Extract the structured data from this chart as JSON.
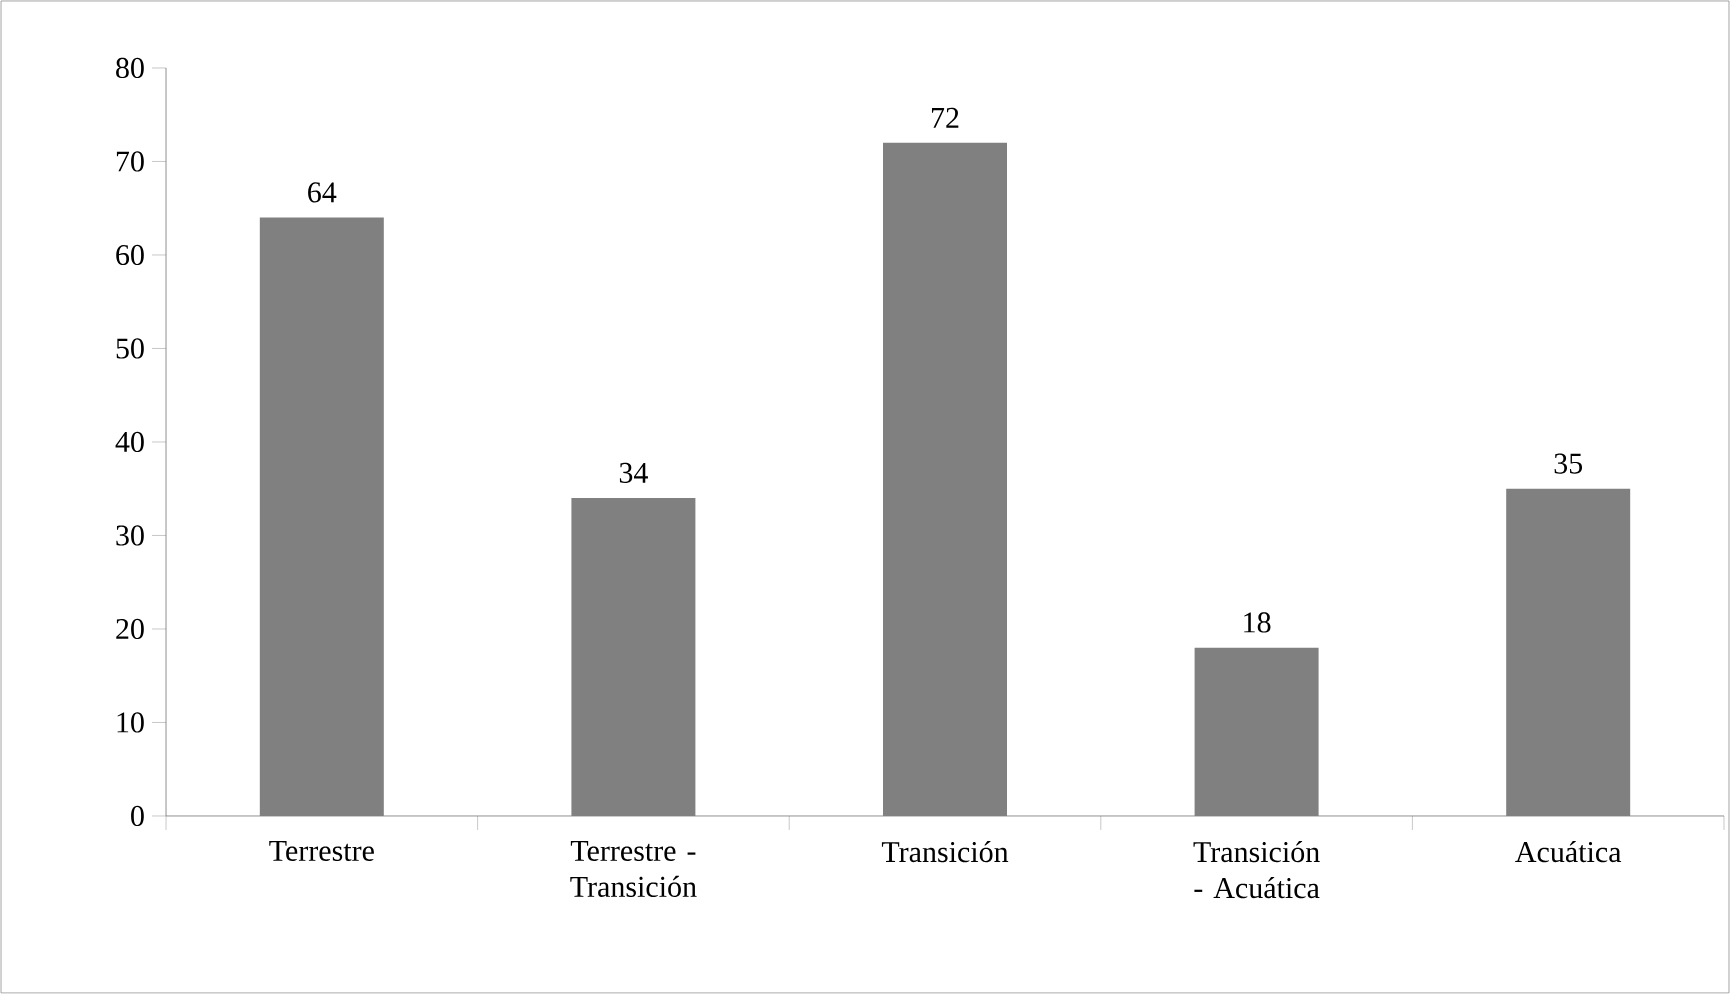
{
  "chart_data": {
    "type": "bar",
    "categories": [
      "Terrestre",
      "Terrestre - Transición",
      "Transición",
      "Transición - Acuática",
      "Acuática"
    ],
    "values": [
      64,
      34,
      72,
      18,
      35
    ],
    "color": "#808080",
    "ylim": [
      0,
      80
    ],
    "yticks": [
      0,
      10,
      20,
      30,
      40,
      50,
      60,
      70,
      80
    ],
    "data_labels": true,
    "grid": false,
    "legend": false
  }
}
